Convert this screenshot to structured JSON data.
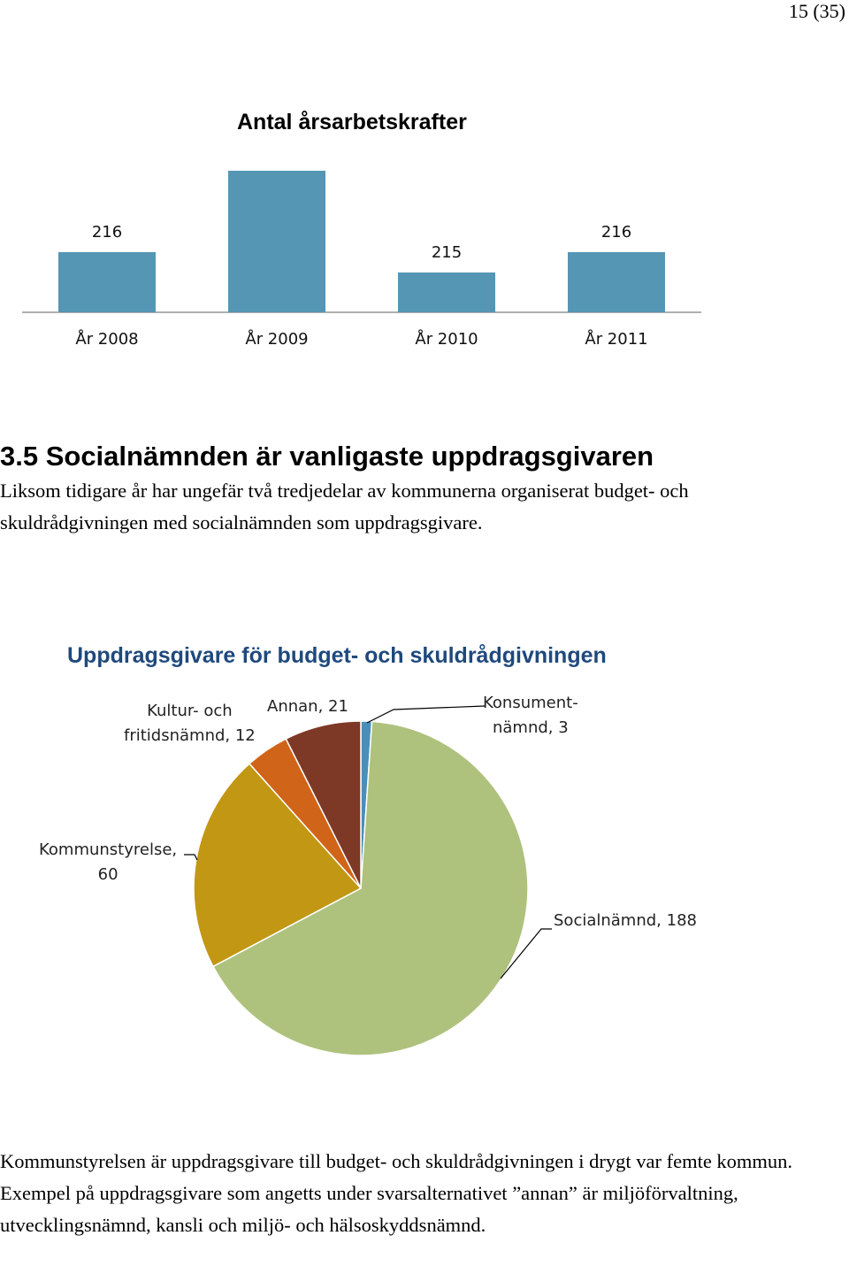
{
  "page": {
    "number": "15 (35)"
  },
  "bar_chart_title": "Antal årsarbetskrafter",
  "section": {
    "heading": "3.5 Socialnämnden är vanligaste uppdragsgivaren",
    "paragraph": "Liksom tidigare år har ungefär två tredjedelar av kommunerna organiserat budget- och skuldrådgivningen med socialnämnden som uppdragsgivare."
  },
  "pie_chart_title": "Uppdragsgivare för budget- och skuldrådgivningen",
  "closing_paragraph": "Kommunstyrelsen är uppdragsgivare till budget- och skuldrådgivningen i drygt var femte kommun. Exempel på uppdragsgivare som angetts under svarsalternativet ”annan” är miljöförvaltning, utvecklingsnämnd, kansli och miljö- och hälsoskyddsnämnd.",
  "pie_labels": {
    "kultur_line1": "Kultur- och",
    "kultur_line2": "fritidsnämnd, 12",
    "annan": "Annan, 21",
    "konsument_line1": "Konsument-",
    "konsument_line2": "nämnd, 3",
    "kommunstyrelse_line1": "Kommunstyrelse,",
    "kommunstyrelse_line2": "60",
    "social": "Socialnämnd, 188"
  },
  "chart_data": [
    {
      "type": "bar",
      "title": "Antal årsarbetskrafter",
      "categories": [
        "År 2008",
        "År 2009",
        "År 2010",
        "År 2011"
      ],
      "values": [
        216,
        220,
        215,
        216
      ],
      "data_labels": true,
      "grid": false,
      "legend": "none",
      "color": "#5596b4"
    },
    {
      "type": "pie",
      "title": "Uppdragsgivare för budget- och skuldrådgivningen",
      "slices": [
        {
          "name": "Konsumentnämnd",
          "value": 3,
          "color": "#4a8fb8"
        },
        {
          "name": "Socialnämnd",
          "value": 188,
          "color": "#aec27d"
        },
        {
          "name": "Kommunstyrelse",
          "value": 60,
          "color": "#c29714"
        },
        {
          "name": "Kultur- och fritidsnämnd",
          "value": 12,
          "color": "#d06418"
        },
        {
          "name": "Annan",
          "value": 21,
          "color": "#7e3826"
        }
      ],
      "start": "top",
      "direction": "clockwise"
    }
  ]
}
